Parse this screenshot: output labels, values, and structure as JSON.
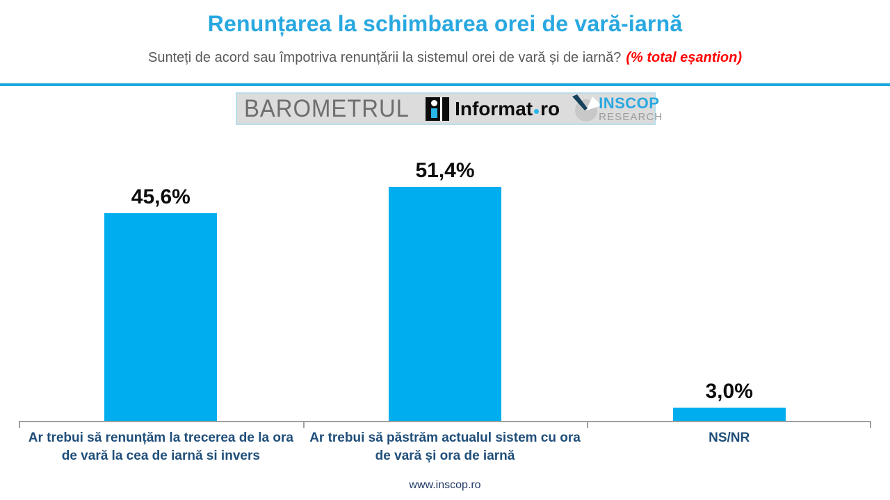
{
  "header": {
    "title": "Renunțarea la schimbarea orei de vară-iarnă",
    "subtitle": "Sunteți de acord sau împotriva renunțării la sistemul orei de vară și de iarnă?",
    "subtitle_highlight": "(% total eșantion)"
  },
  "logos": {
    "barometrul": "BAROMETRUL",
    "informat_name": "Informat",
    "informat_tld": "ro",
    "inscop_name": "INSCOP",
    "inscop_sub": "RESEARCH"
  },
  "chart_data": {
    "type": "bar",
    "title": "Renunțarea la schimbarea orei de vară-iarnă",
    "categories": [
      "Ar trebui să renunțăm la trecerea de la ora de vară la cea de iarnă si invers",
      "Ar trebui să păstrăm actualul sistem cu ora de vară și ora de iarnă",
      "NS/NR"
    ],
    "values": [
      45.6,
      51.4,
      3.0
    ],
    "value_labels": [
      "45,6%",
      "51,4%",
      "3,0%"
    ],
    "xlabel": "",
    "ylabel": "",
    "ylim": [
      0,
      58
    ],
    "grid": false,
    "legend": false,
    "bar_color": "#00aeef"
  },
  "footer": {
    "url": "www.inscop.ro"
  },
  "colors": {
    "title_blue": "#29a8e0",
    "bar_cyan": "#00aeef",
    "category_blue": "#1f4e79",
    "subtitle_gray": "#595959",
    "highlight_red": "#ff0000",
    "divider_blue": "#1ca7df"
  }
}
